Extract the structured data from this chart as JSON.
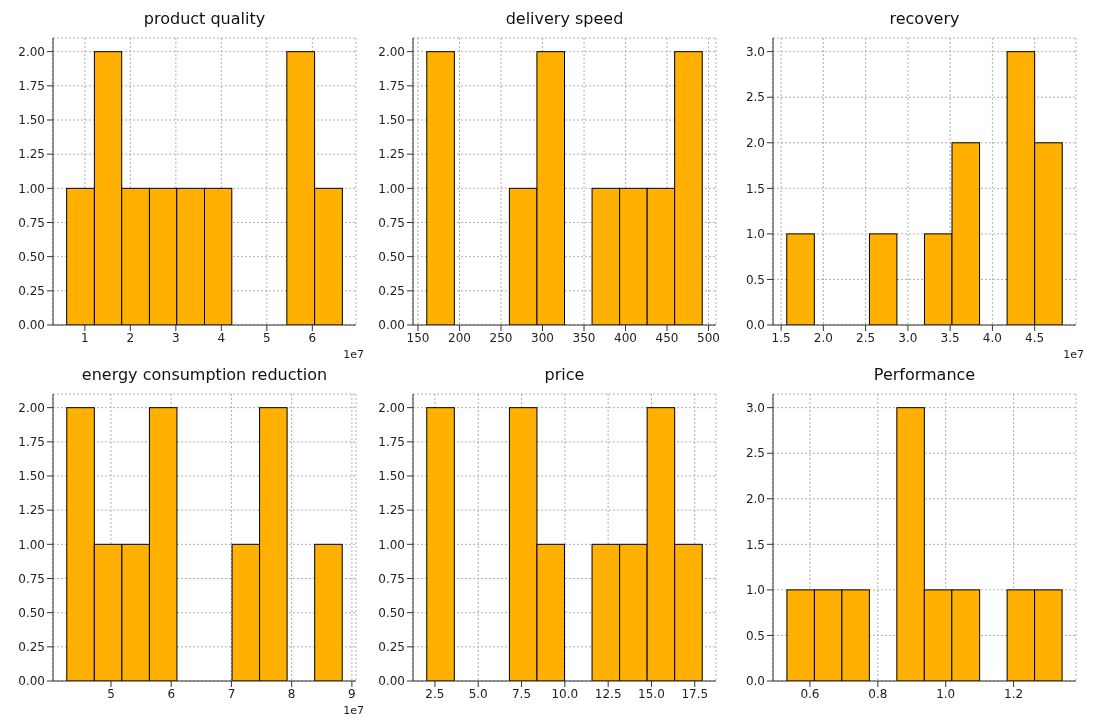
{
  "chart_data": [
    {
      "type": "histogram",
      "title": "product quality",
      "color": "#ffb000",
      "grid": true,
      "annotations": [
        "1e7"
      ],
      "bins": [
        0.6,
        1.21,
        1.81,
        2.42,
        3.02,
        3.63,
        4.23,
        4.84,
        5.44,
        6.05,
        6.66
      ],
      "values": [
        1,
        2,
        1,
        1,
        1,
        1,
        0,
        0,
        2,
        1
      ],
      "xlim": [
        0.3,
        6.96
      ],
      "xticks": [
        1,
        2,
        3,
        4,
        5,
        6
      ],
      "ylim": [
        0,
        2.1
      ],
      "yticks": [
        {
          "value": 0,
          "label": "0.00"
        },
        {
          "value": 0.25,
          "label": "0.25"
        },
        {
          "value": 0.5,
          "label": "0.50"
        },
        {
          "value": 0.75,
          "label": "0.75"
        },
        {
          "value": 1,
          "label": "1.00"
        },
        {
          "value": 1.25,
          "label": "1.25"
        },
        {
          "value": 1.5,
          "label": "1.50"
        },
        {
          "value": 1.75,
          "label": "1.75"
        },
        {
          "value": 2,
          "label": "2.00"
        }
      ]
    },
    {
      "type": "histogram",
      "title": "delivery speed",
      "color": "#ffb000",
      "grid": true,
      "bins": [
        160.6,
        193.8,
        227,
        260.1,
        293.3,
        326.5,
        359.7,
        392.9,
        426.1,
        459.2,
        492.4
      ],
      "values": [
        2,
        0,
        0,
        1,
        2,
        0,
        1,
        1,
        1,
        2
      ],
      "xlim": [
        144,
        509
      ],
      "xticks": [
        150,
        200,
        250,
        300,
        350,
        400,
        450,
        500
      ],
      "ylim": [
        0,
        2.1
      ],
      "yticks": [
        {
          "value": 0,
          "label": "0.00"
        },
        {
          "value": 0.25,
          "label": "0.25"
        },
        {
          "value": 0.5,
          "label": "0.50"
        },
        {
          "value": 0.75,
          "label": "0.75"
        },
        {
          "value": 1,
          "label": "1.00"
        },
        {
          "value": 1.25,
          "label": "1.25"
        },
        {
          "value": 1.5,
          "label": "1.50"
        },
        {
          "value": 1.75,
          "label": "1.75"
        },
        {
          "value": 2,
          "label": "2.00"
        }
      ]
    },
    {
      "type": "histogram",
      "title": "recovery",
      "color": "#ffb000",
      "grid": true,
      "annotations": [
        "1e7"
      ],
      "bins": [
        1.567,
        1.893,
        2.219,
        2.545,
        2.87,
        3.196,
        3.522,
        3.848,
        4.174,
        4.5,
        4.826
      ],
      "values": [
        1,
        0,
        0,
        1,
        0,
        1,
        2,
        0,
        3,
        2
      ],
      "xlim": [
        1.404,
        4.989
      ],
      "xticks": [
        {
          "value": 1.5,
          "label": "1.5"
        },
        {
          "value": 2,
          "label": "2.0"
        },
        {
          "value": 2.5,
          "label": "2.5"
        },
        {
          "value": 3,
          "label": "3.0"
        },
        {
          "value": 3.5,
          "label": "3.5"
        },
        {
          "value": 4,
          "label": "4.0"
        },
        {
          "value": 4.5,
          "label": "4.5"
        }
      ],
      "ylim": [
        0,
        3.15
      ],
      "yticks": [
        {
          "value": 0,
          "label": "0.0"
        },
        {
          "value": 0.5,
          "label": "0.5"
        },
        {
          "value": 1,
          "label": "1.0"
        },
        {
          "value": 1.5,
          "label": "1.5"
        },
        {
          "value": 2,
          "label": "2.0"
        },
        {
          "value": 2.5,
          "label": "2.5"
        },
        {
          "value": 3,
          "label": "3.0"
        }
      ]
    },
    {
      "type": "histogram",
      "title": "energy consumption reduction",
      "color": "#ffb000",
      "grid": true,
      "annotations": [
        "1e7"
      ],
      "bins": [
        4.266,
        4.723,
        5.181,
        5.638,
        6.095,
        6.553,
        7.01,
        7.467,
        7.924,
        8.382,
        8.839
      ],
      "values": [
        2,
        1,
        1,
        2,
        0,
        0,
        1,
        2,
        0,
        1
      ],
      "xlim": [
        4.037,
        9.068
      ],
      "xticks": [
        5,
        6,
        7,
        8,
        9
      ],
      "ylim": [
        0,
        2.1
      ],
      "yticks": [
        {
          "value": 0,
          "label": "0.00"
        },
        {
          "value": 0.25,
          "label": "0.25"
        },
        {
          "value": 0.5,
          "label": "0.50"
        },
        {
          "value": 0.75,
          "label": "0.75"
        },
        {
          "value": 1,
          "label": "1.00"
        },
        {
          "value": 1.25,
          "label": "1.25"
        },
        {
          "value": 1.5,
          "label": "1.50"
        },
        {
          "value": 1.75,
          "label": "1.75"
        },
        {
          "value": 2,
          "label": "2.00"
        }
      ]
    },
    {
      "type": "histogram",
      "title": "price",
      "color": "#ffb000",
      "grid": true,
      "bins": [
        2.03,
        3.62,
        5.21,
        6.8,
        8.39,
        9.98,
        11.57,
        13.16,
        14.75,
        16.34,
        17.93
      ],
      "values": [
        2,
        0,
        0,
        2,
        1,
        0,
        1,
        1,
        2,
        1
      ],
      "xlim": [
        1.235,
        18.725
      ],
      "xticks": [
        2.5,
        {
          "value": 5,
          "label": "5.0"
        },
        7.5,
        {
          "value": 10,
          "label": "10.0"
        },
        12.5,
        {
          "value": 15,
          "label": "15.0"
        },
        17.5
      ],
      "ylim": [
        0,
        2.1
      ],
      "yticks": [
        {
          "value": 0,
          "label": "0.00"
        },
        {
          "value": 0.25,
          "label": "0.25"
        },
        {
          "value": 0.5,
          "label": "0.50"
        },
        {
          "value": 0.75,
          "label": "0.75"
        },
        {
          "value": 1,
          "label": "1.00"
        },
        {
          "value": 1.25,
          "label": "1.25"
        },
        {
          "value": 1.5,
          "label": "1.50"
        },
        {
          "value": 1.75,
          "label": "1.75"
        },
        {
          "value": 2,
          "label": "2.00"
        }
      ]
    },
    {
      "type": "histogram",
      "title": "Performance",
      "color": "#ffb000",
      "grid": true,
      "bins": [
        0.532,
        0.613,
        0.694,
        0.775,
        0.856,
        0.937,
        1.018,
        1.1,
        1.181,
        1.262,
        1.343
      ],
      "values": [
        1,
        1,
        1,
        0,
        3,
        1,
        1,
        0,
        1,
        1
      ],
      "xlim": [
        0.491,
        1.384
      ],
      "xticks": [
        0.6,
        0.8,
        {
          "value": 1,
          "label": "1.0"
        },
        1.2
      ],
      "ylim": [
        0,
        3.15
      ],
      "yticks": [
        {
          "value": 0,
          "label": "0.0"
        },
        {
          "value": 0.5,
          "label": "0.5"
        },
        {
          "value": 1,
          "label": "1.0"
        },
        {
          "value": 1.5,
          "label": "1.5"
        },
        {
          "value": 2,
          "label": "2.0"
        },
        {
          "value": 2.5,
          "label": "2.5"
        },
        {
          "value": 3,
          "label": "3.0"
        }
      ]
    }
  ]
}
